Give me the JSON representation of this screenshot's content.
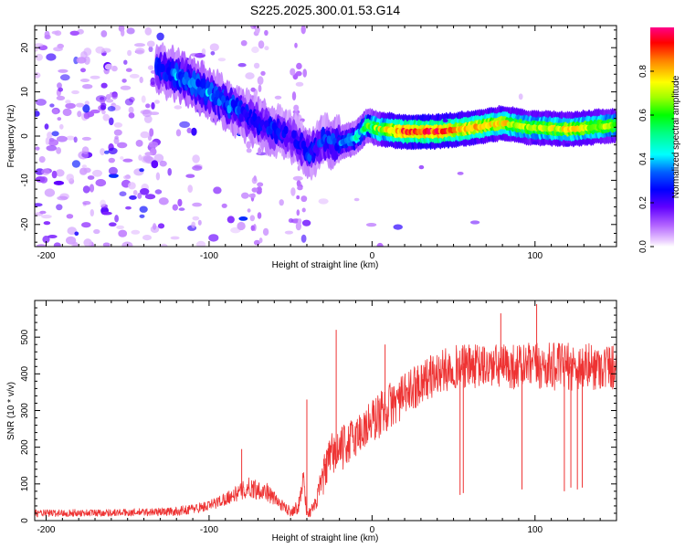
{
  "figure_title": "S225.2025.300.01.53.G14",
  "colors": {
    "line": "#ee3333",
    "axis": "#000000",
    "colormap": [
      "#ffffff",
      "#f0c8ff",
      "#c080ff",
      "#8000ff",
      "#0000ff",
      "#00a0ff",
      "#00ffff",
      "#00ff40",
      "#ffff00",
      "#ff8000",
      "#ff0000",
      "#ff00a0"
    ]
  },
  "chart_data": [
    {
      "type": "heatmap",
      "title": "Spectrogram",
      "xlabel": "Height of straight line (km)",
      "ylabel": "Frequency (Hz)",
      "xlim": [
        -207,
        150
      ],
      "ylim": [
        -25,
        25
      ],
      "xticks": [
        -200,
        -100,
        0,
        100
      ],
      "xtick_labels": [
        "-200",
        "-100",
        "0",
        "100"
      ],
      "yticks": [
        20,
        10,
        0,
        -10,
        -20
      ],
      "ytick_labels": [
        "20",
        "10",
        "0",
        "-10",
        "-20"
      ],
      "colorbar": {
        "label": "Normalized spectral amplitude",
        "range": [
          0,
          1
        ],
        "ticks": [
          0.0,
          0.2,
          0.4,
          0.6,
          0.8
        ],
        "tick_labels": [
          "0.0",
          "0.2",
          "0.4",
          "0.6",
          "0.8"
        ]
      },
      "ridge": [
        {
          "x": -132,
          "f": 15.0,
          "amp": 0.3
        },
        {
          "x": -122,
          "f": 14.0,
          "amp": 0.34
        },
        {
          "x": -112,
          "f": 12.5,
          "amp": 0.38
        },
        {
          "x": -102,
          "f": 10.0,
          "amp": 0.36
        },
        {
          "x": -92,
          "f": 8.0,
          "amp": 0.34
        },
        {
          "x": -82,
          "f": 5.5,
          "amp": 0.3
        },
        {
          "x": -72,
          "f": 3.5,
          "amp": 0.28
        },
        {
          "x": -62,
          "f": 1.5,
          "amp": 0.26
        },
        {
          "x": -50,
          "f": 0.0,
          "amp": 0.24
        },
        {
          "x": -38,
          "f": -4.0,
          "amp": 0.28
        },
        {
          "x": -30,
          "f": -1.0,
          "amp": 0.28
        },
        {
          "x": -20,
          "f": -1.5,
          "amp": 0.32
        },
        {
          "x": -10,
          "f": -0.5,
          "amp": 0.42
        },
        {
          "x": -3,
          "f": 2.5,
          "amp": 0.55
        },
        {
          "x": 5,
          "f": 1.5,
          "amp": 0.7
        },
        {
          "x": 20,
          "f": 1.0,
          "amp": 0.95
        },
        {
          "x": 40,
          "f": 1.0,
          "amp": 0.95
        },
        {
          "x": 60,
          "f": 1.8,
          "amp": 0.85
        },
        {
          "x": 80,
          "f": 3.0,
          "amp": 0.8
        },
        {
          "x": 95,
          "f": 2.0,
          "amp": 0.7
        },
        {
          "x": 120,
          "f": 1.5,
          "amp": 0.78
        },
        {
          "x": 150,
          "f": 2.5,
          "amp": 0.7
        }
      ]
    },
    {
      "type": "line",
      "title": "SNR",
      "xlabel": "Height of straight line (km)",
      "ylabel": "SNR (10 * v/v)",
      "xlim": [
        -207,
        150
      ],
      "ylim": [
        0,
        600
      ],
      "xticks": [
        -200,
        -100,
        0,
        100
      ],
      "xtick_labels": [
        "-200",
        "-100",
        "0",
        "100"
      ],
      "yticks": [
        0,
        100,
        200,
        300,
        400,
        500
      ],
      "ytick_labels": [
        "0",
        "100",
        "200",
        "300",
        "400",
        "500"
      ],
      "envelope": {
        "x": [
          -207,
          -150,
          -120,
          -100,
          -85,
          -75,
          -65,
          -55,
          -50,
          -45,
          -42,
          -40,
          -35,
          -30,
          -25,
          -20,
          -10,
          0,
          10,
          20,
          30,
          50,
          70,
          100,
          120,
          150
        ],
        "snr": [
          20,
          22,
          25,
          40,
          70,
          90,
          80,
          40,
          25,
          40,
          120,
          15,
          40,
          120,
          180,
          190,
          230,
          270,
          310,
          340,
          380,
          420,
          420,
          420,
          420,
          420
        ],
        "noise_amp": [
          10,
          10,
          12,
          15,
          20,
          30,
          25,
          15,
          15,
          20,
          40,
          10,
          20,
          50,
          60,
          60,
          60,
          65,
          65,
          60,
          60,
          60,
          60,
          65,
          65,
          65
        ]
      },
      "spikes": [
        {
          "x": -80,
          "snr": 195
        },
        {
          "x": -40,
          "snr": 330
        },
        {
          "x": -22,
          "snr": 520
        },
        {
          "x": 8,
          "snr": 480
        },
        {
          "x": 79,
          "snr": 565
        },
        {
          "x": 101,
          "snr": 590
        }
      ],
      "dips": [
        {
          "x": 54,
          "snr": 70
        },
        {
          "x": 56,
          "snr": 75
        },
        {
          "x": 92,
          "snr": 85
        },
        {
          "x": 118,
          "snr": 80
        },
        {
          "x": 122,
          "snr": 90
        },
        {
          "x": 126,
          "snr": 85
        },
        {
          "x": 129,
          "snr": 90
        }
      ]
    }
  ]
}
